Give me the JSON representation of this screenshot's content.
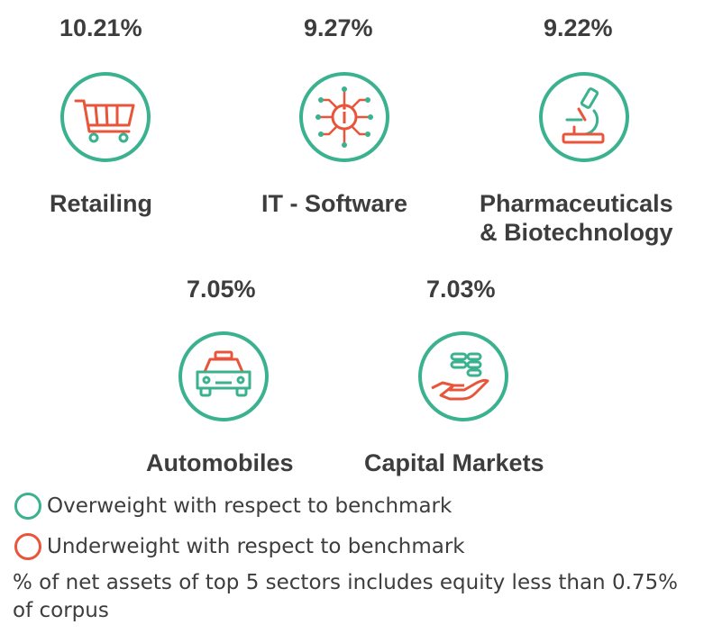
{
  "chart_data": {
    "type": "table",
    "categories": [
      "Retailing",
      "IT - Software",
      "Pharmaceuticals & Biotechnology",
      "Automobiles",
      "Capital Markets"
    ],
    "values": [
      10.21,
      9.27,
      9.22,
      7.05,
      7.03
    ],
    "items": [
      {
        "value_label": "10.21%",
        "name_lines": [
          "Retailing"
        ],
        "weight": "overweight",
        "icon": "shopping-cart-icon"
      },
      {
        "value_label": "9.27%",
        "name_lines": [
          "IT - Software"
        ],
        "weight": "overweight",
        "icon": "circuit-chip-icon"
      },
      {
        "value_label": "9.22%",
        "name_lines": [
          "Pharmaceuticals",
          "& Biotechnology"
        ],
        "weight": "overweight",
        "icon": "microscope-icon"
      },
      {
        "value_label": "7.05%",
        "name_lines": [
          "Automobiles"
        ],
        "weight": "overweight",
        "icon": "car-icon"
      },
      {
        "value_label": "7.03%",
        "name_lines": [
          "Capital Markets"
        ],
        "weight": "overweight",
        "icon": "hand-coins-icon"
      }
    ]
  },
  "legend": {
    "overweight": "Overweight with respect to benchmark",
    "underweight": "Underweight with respect to benchmark"
  },
  "note": "% of net assets of top 5 sectors includes equity less than 0.75% of corpus",
  "colors": {
    "overweight": "#3bb28f",
    "underweight": "#e8553a",
    "text": "#3d3d3d"
  }
}
